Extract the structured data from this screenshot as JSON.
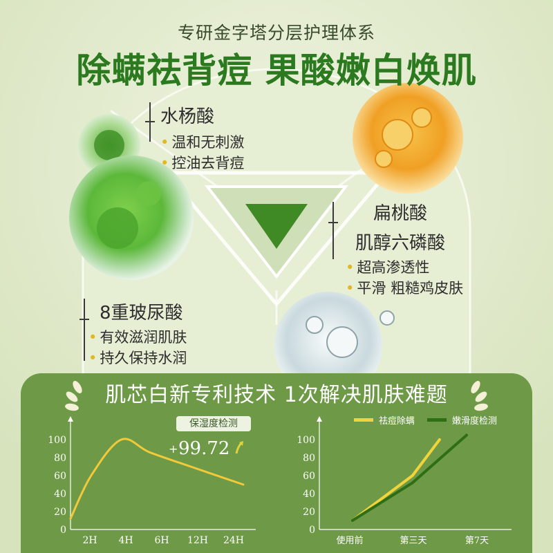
{
  "header": {
    "subtitle": "专研金字塔分层护理体系",
    "headline": "除螨祛背痘 果酸嫩白焕肌"
  },
  "ingredients": [
    {
      "name": "水杨酸",
      "bullets": [
        "温和无刺激",
        "控油去背痘"
      ]
    },
    {
      "name_line1": "扁桃酸",
      "name_line2": "肌醇六磷酸",
      "bullets": [
        "超高渗透性",
        "平滑 粗糙鸡皮肤"
      ]
    },
    {
      "name": "8重玻尿酸",
      "bullets": [
        "有效滋润肌肤",
        "持久保持水润"
      ]
    }
  ],
  "panel": {
    "title": "肌芯白新专利技术 1次解决肌肤难题"
  },
  "chart_data": [
    {
      "type": "line",
      "badge": "保湿度检测",
      "annotation": "99.72",
      "annotation_prefix": "+",
      "categories": [
        "2H",
        "4H",
        "6H",
        "12H",
        "24H"
      ],
      "y_ticks": [
        "0",
        "20",
        "40",
        "60",
        "80",
        "100"
      ],
      "ylim": [
        0,
        100
      ],
      "series": [
        {
          "color": "#f2c93a",
          "x": [
            0,
            0.55,
            1.35,
            2.1,
            3.2,
            4.6
          ],
          "values": [
            12,
            60,
            100,
            86,
            70,
            50
          ]
        }
      ]
    },
    {
      "type": "line",
      "categories": [
        "使用前",
        "第三天",
        "第7天"
      ],
      "y_ticks": [
        "0",
        "20",
        "40",
        "60",
        "80",
        "100"
      ],
      "ylim": [
        0,
        100
      ],
      "series": [
        {
          "name": "祛痘除螨",
          "color": "#f2d43a",
          "x": [
            0,
            1,
            1.45
          ],
          "values": [
            10,
            60,
            100
          ]
        },
        {
          "name": "嫩滑度检测",
          "color": "#2e6e14",
          "x": [
            0,
            1,
            1.9
          ],
          "values": [
            10,
            52,
            105
          ]
        }
      ]
    }
  ],
  "colors": {
    "headline": "#2c7a1f",
    "panel": "#6e9a48",
    "bullet_dot": "#e2b721",
    "legend_yellow": "#f2d43a",
    "legend_green": "#2e6e14"
  }
}
